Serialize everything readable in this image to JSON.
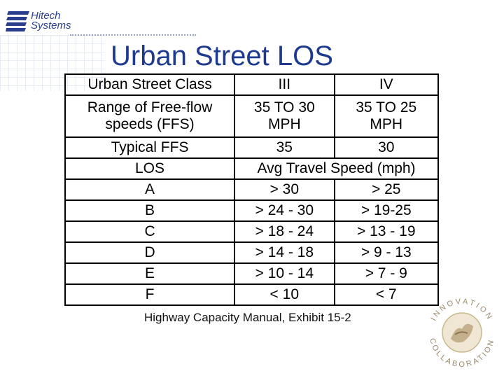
{
  "logo": {
    "line1": "Hitech",
    "line2": "Systems"
  },
  "title": "Urban Street LOS",
  "table": {
    "header": [
      "Urban Street Class",
      "III",
      "IV"
    ],
    "ffs_range": {
      "label_line1": "Range of Free-flow",
      "label_line2": "speeds (FFS)",
      "c3_line1": "35 TO 30",
      "c3_line2": "MPH",
      "c4_line1": "35 TO 25",
      "c4_line2": "MPH"
    },
    "typical": [
      "Typical FFS",
      "35",
      "30"
    ],
    "los_header": [
      "LOS",
      "Avg Travel Speed (mph)"
    ],
    "rows": [
      [
        "A",
        "> 30",
        "> 25"
      ],
      [
        "B",
        "> 24 - 30",
        "> 19-25"
      ],
      [
        "C",
        "> 18 - 24",
        "> 13 - 19"
      ],
      [
        "D",
        "> 14 - 18",
        "> 9 - 13"
      ],
      [
        "E",
        "> 10 - 14",
        "> 7 - 9"
      ],
      [
        "F",
        "< 10",
        "< 7"
      ]
    ]
  },
  "caption": "Highway Capacity Manual, Exhibit 15-2",
  "seal": {
    "top_text": "INNOVATION",
    "bottom_text": "COLLABORATION"
  }
}
